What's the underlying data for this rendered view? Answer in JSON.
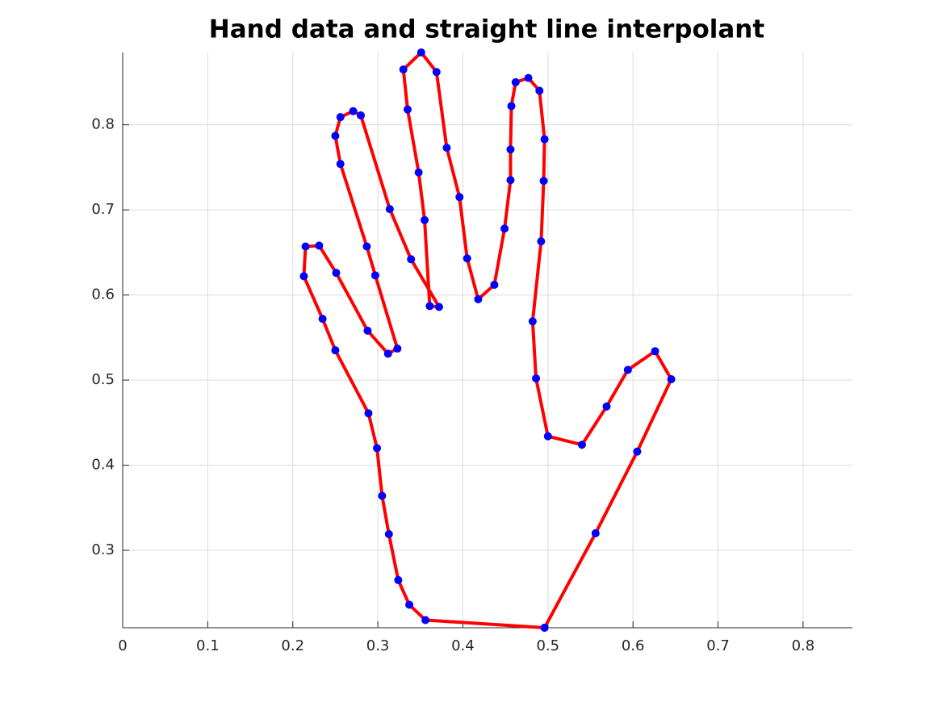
{
  "chart_data": {
    "type": "line",
    "title": "Hand data and straight line interpolant",
    "x": [
      0.496,
      0.556,
      0.605,
      0.645,
      0.626,
      0.594,
      0.569,
      0.54,
      0.5,
      0.486,
      0.482,
      0.492,
      0.495,
      0.496,
      0.49,
      0.477,
      0.462,
      0.457,
      0.456,
      0.456,
      0.449,
      0.437,
      0.418,
      0.405,
      0.396,
      0.381,
      0.369,
      0.351,
      0.33,
      0.335,
      0.348,
      0.355,
      0.361,
      0.372,
      0.339,
      0.314,
      0.28,
      0.271,
      0.256,
      0.25,
      0.256,
      0.287,
      0.297,
      0.323,
      0.312,
      0.288,
      0.251,
      0.231,
      0.215,
      0.213,
      0.235,
      0.25,
      0.289,
      0.299,
      0.305,
      0.313,
      0.324,
      0.337,
      0.356,
      0.496
    ],
    "values": [
      0.209,
      0.32,
      0.416,
      0.501,
      0.534,
      0.512,
      0.469,
      0.424,
      0.434,
      0.502,
      0.569,
      0.663,
      0.734,
      0.783,
      0.84,
      0.855,
      0.85,
      0.822,
      0.771,
      0.735,
      0.678,
      0.612,
      0.595,
      0.643,
      0.715,
      0.773,
      0.862,
      0.885,
      0.865,
      0.818,
      0.744,
      0.688,
      0.587,
      0.586,
      0.642,
      0.701,
      0.811,
      0.816,
      0.809,
      0.787,
      0.754,
      0.657,
      0.623,
      0.537,
      0.531,
      0.558,
      0.626,
      0.658,
      0.657,
      0.622,
      0.572,
      0.535,
      0.461,
      0.42,
      0.364,
      0.319,
      0.265,
      0.236,
      0.218,
      0.209
    ],
    "color": "#ff0000",
    "marker_color": "#0000ff",
    "xlim": [
      0,
      0.858
    ],
    "ylim": [
      0.209,
      0.885
    ],
    "xticks": [
      0,
      0.1,
      0.2,
      0.3,
      0.4,
      0.5,
      0.6,
      0.7,
      0.8
    ],
    "yticks": [
      0.3,
      0.4,
      0.5,
      0.6,
      0.7,
      0.8
    ],
    "grid": true
  }
}
